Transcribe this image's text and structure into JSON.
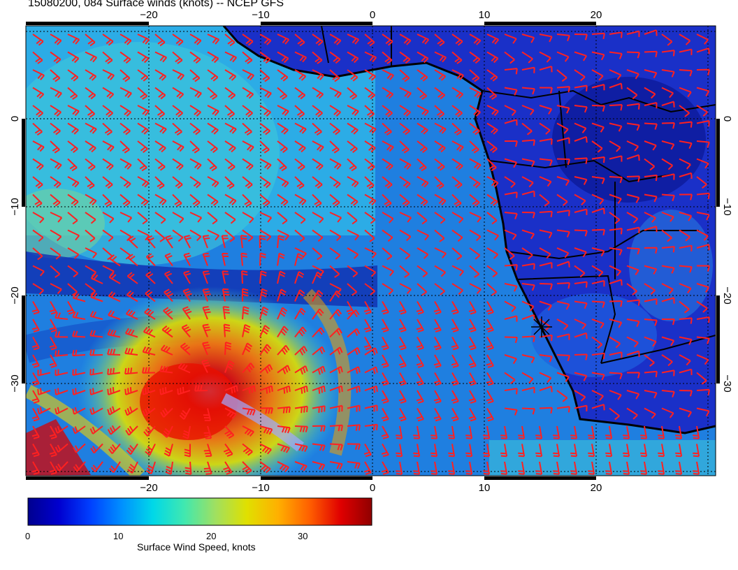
{
  "title": "15080200, 084 Surface winds (knots) -- NCEP GFS",
  "map": {
    "lon_range": [
      -30,
      30
    ],
    "lat_range": [
      -40,
      10
    ],
    "lon_ticks": [
      "−20",
      "−10",
      "0",
      "10",
      "20"
    ],
    "lat_ticks": [
      "0",
      "−10",
      "−20",
      "−30"
    ],
    "barb_color": "#ff2020",
    "coast_color": "#000000",
    "cyclone_center": {
      "lon": -15,
      "lat": -33
    },
    "marker_position": {
      "lon": 15,
      "lat": -24
    }
  },
  "colorbar": {
    "title": "Surface Wind Speed, knots",
    "range": [
      0,
      38
    ],
    "ticks": [
      "0",
      "10",
      "20",
      "30"
    ],
    "colors": [
      "#00008f",
      "#0000d0",
      "#0040ff",
      "#0090ff",
      "#00d8e8",
      "#40e8b0",
      "#a0e060",
      "#e0e000",
      "#ffb000",
      "#ff6000",
      "#e00000",
      "#900000"
    ]
  }
}
